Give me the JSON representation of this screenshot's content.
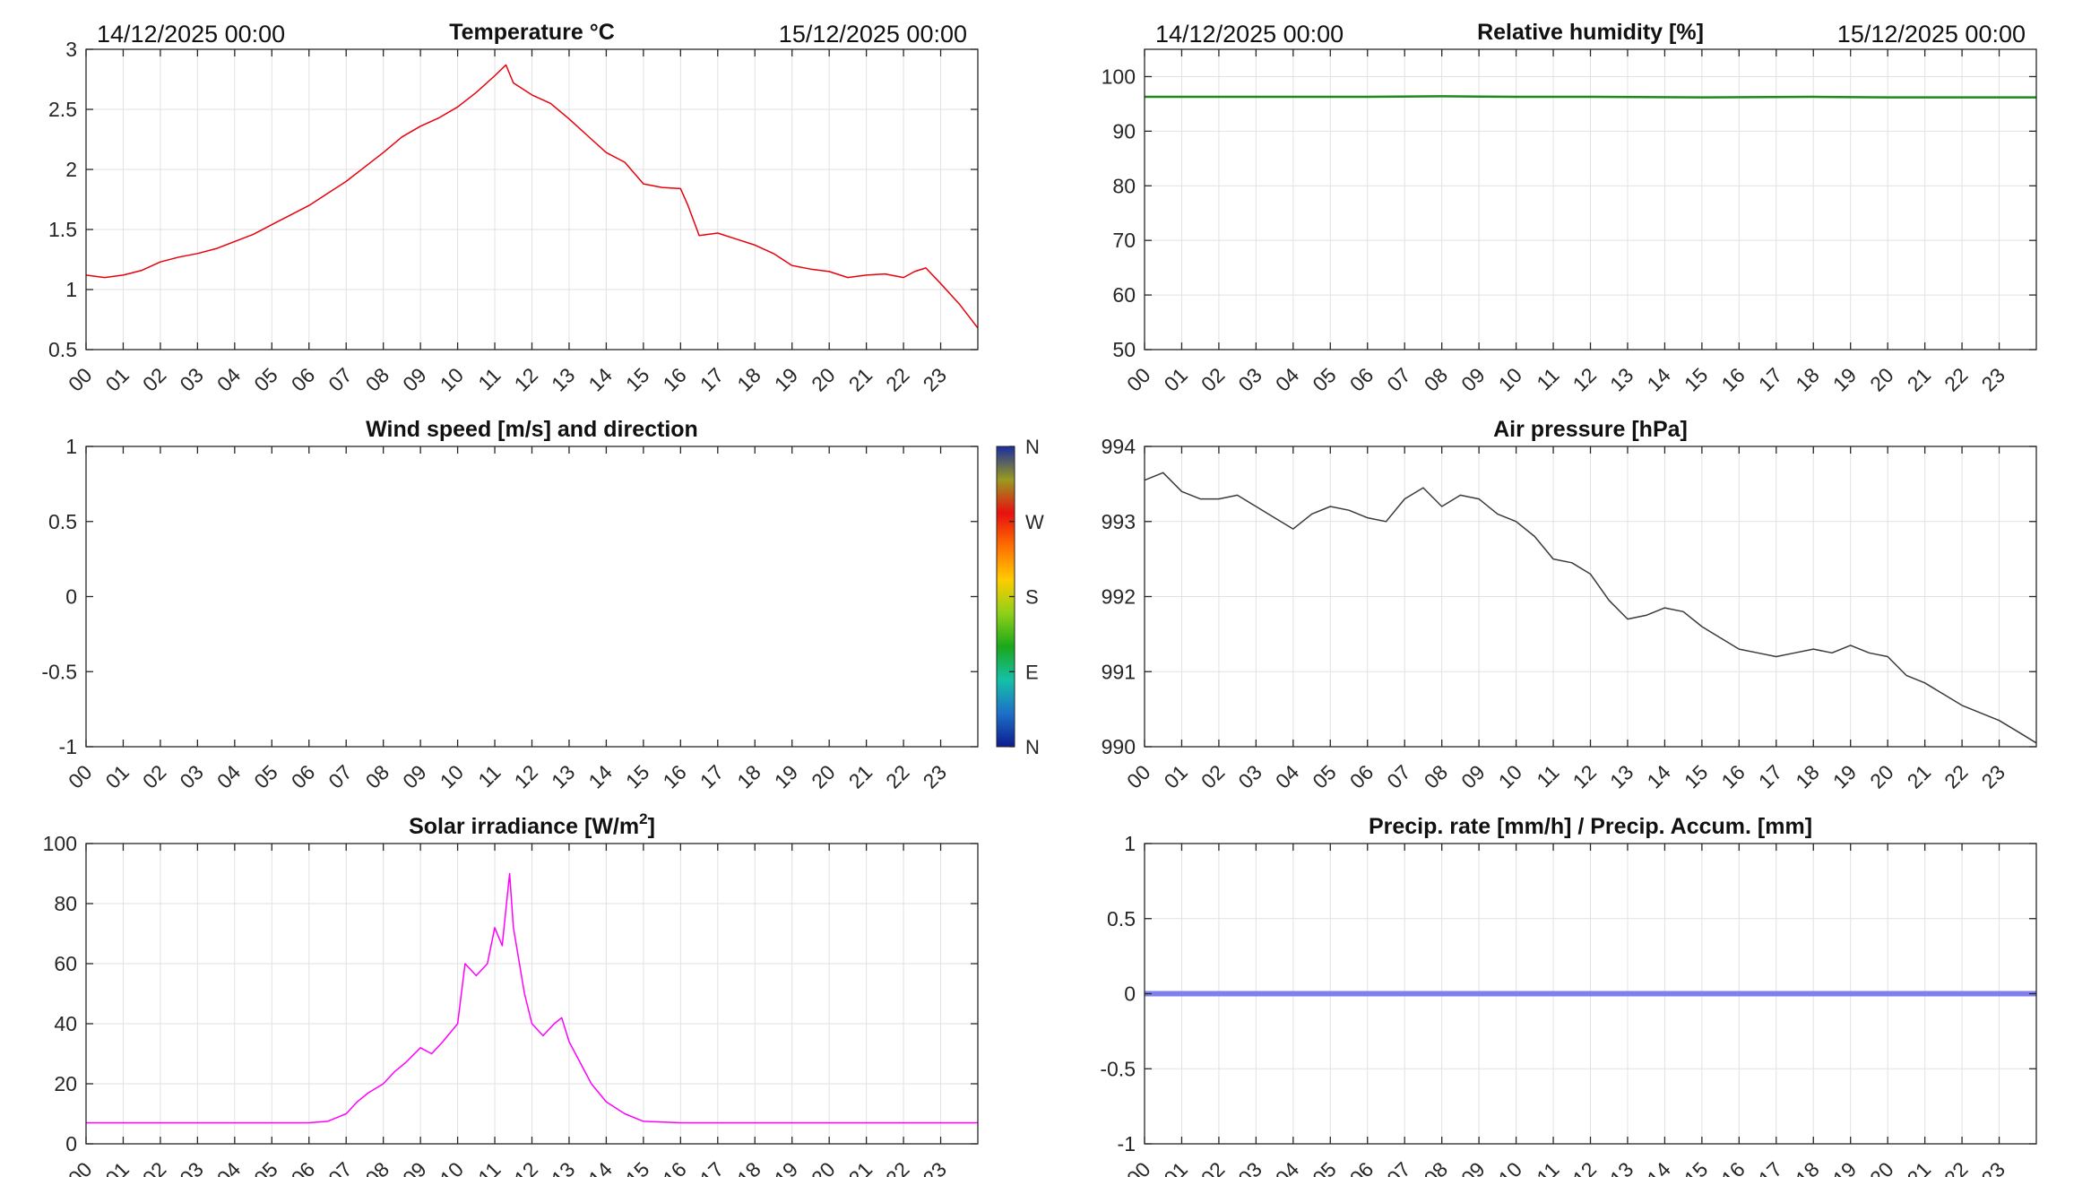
{
  "chart_data": [
    {
      "id": "temperature",
      "type": "line",
      "title": "Temperature °C",
      "date_start": "14/12/2025 00:00",
      "date_end": "15/12/2025 00:00",
      "x_ticks": [
        "00",
        "01",
        "02",
        "03",
        "04",
        "05",
        "06",
        "07",
        "08",
        "09",
        "10",
        "11",
        "12",
        "13",
        "14",
        "15",
        "16",
        "17",
        "18",
        "19",
        "20",
        "21",
        "22",
        "23"
      ],
      "xlim": [
        0,
        24
      ],
      "ylim": [
        0.5,
        3
      ],
      "y_ticks": [
        0.5,
        1,
        1.5,
        2,
        2.5,
        3
      ],
      "y_tick_labels": [
        "0.5",
        "1",
        "1.5",
        "2",
        "2.5",
        "3"
      ],
      "line_color": "#e8000b",
      "grid": true,
      "series": [
        {
          "x": [
            0,
            0.5,
            1,
            1.5,
            2,
            2.5,
            3,
            3.5,
            4,
            4.5,
            5,
            5.5,
            6,
            6.5,
            7,
            7.5,
            8,
            8.5,
            9,
            9.5,
            10,
            10.5,
            11,
            11.3,
            11.5,
            12,
            12.5,
            13,
            13.5,
            14,
            14.5,
            15,
            15.5,
            16,
            16.2,
            16.5,
            17,
            17.5,
            18,
            18.5,
            19,
            19.5,
            20,
            20.5,
            21,
            21.5,
            22,
            22.3,
            22.6,
            23,
            23.5,
            24
          ],
          "y": [
            1.12,
            1.1,
            1.12,
            1.16,
            1.23,
            1.27,
            1.3,
            1.34,
            1.4,
            1.46,
            1.54,
            1.62,
            1.7,
            1.8,
            1.9,
            2.02,
            2.14,
            2.27,
            2.36,
            2.43,
            2.52,
            2.64,
            2.78,
            2.87,
            2.72,
            2.62,
            2.55,
            2.42,
            2.28,
            2.14,
            2.06,
            1.88,
            1.85,
            1.84,
            1.7,
            1.45,
            1.47,
            1.42,
            1.37,
            1.3,
            1.2,
            1.17,
            1.15,
            1.1,
            1.12,
            1.13,
            1.1,
            1.15,
            1.18,
            1.05,
            0.88,
            0.68
          ]
        }
      ]
    },
    {
      "id": "humidity",
      "type": "line",
      "title": "Relative humidity [%]",
      "date_start": "14/12/2025 00:00",
      "date_end": "15/12/2025 00:00",
      "x_ticks": [
        "00",
        "01",
        "02",
        "03",
        "04",
        "05",
        "06",
        "07",
        "08",
        "09",
        "10",
        "11",
        "12",
        "13",
        "14",
        "15",
        "16",
        "17",
        "18",
        "19",
        "20",
        "21",
        "22",
        "23"
      ],
      "xlim": [
        0,
        24
      ],
      "ylim": [
        50,
        105
      ],
      "y_ticks": [
        50,
        60,
        70,
        80,
        90,
        100
      ],
      "y_tick_labels": [
        "50",
        "60",
        "70",
        "80",
        "90",
        "100"
      ],
      "line_color": "#1a8a1a",
      "grid": true,
      "series": [
        {
          "x": [
            0,
            6,
            8,
            10,
            12,
            15,
            18,
            20,
            24
          ],
          "y": [
            96.3,
            96.3,
            96.4,
            96.3,
            96.3,
            96.2,
            96.3,
            96.2,
            96.2
          ]
        }
      ]
    },
    {
      "id": "wind",
      "type": "scatter",
      "title": "Wind speed [m/s] and direction",
      "x_ticks": [
        "00",
        "01",
        "02",
        "03",
        "04",
        "05",
        "06",
        "07",
        "08",
        "09",
        "10",
        "11",
        "12",
        "13",
        "14",
        "15",
        "16",
        "17",
        "18",
        "19",
        "20",
        "21",
        "22",
        "23"
      ],
      "xlim": [
        0,
        24
      ],
      "ylim": [
        -1,
        1
      ],
      "y_ticks": [
        -1,
        -0.5,
        0,
        0.5,
        1
      ],
      "y_tick_labels": [
        "-1",
        "-0.5",
        "0",
        "0.5",
        "1"
      ],
      "grid": false,
      "series": [],
      "colorbar": {
        "labels": [
          "N",
          "W",
          "S",
          "E",
          "N"
        ],
        "colors": [
          "#0d1c8f",
          "#1c70c8",
          "#15c0a8",
          "#1aa81a",
          "#8fd018",
          "#ffcc00",
          "#ff7000",
          "#e81010",
          "#9a9a20",
          "#1a2da0"
        ]
      }
    },
    {
      "id": "pressure",
      "type": "line",
      "title": "Air pressure [hPa]",
      "x_ticks": [
        "00",
        "01",
        "02",
        "03",
        "04",
        "05",
        "06",
        "07",
        "08",
        "09",
        "10",
        "11",
        "12",
        "13",
        "14",
        "15",
        "16",
        "17",
        "18",
        "19",
        "20",
        "21",
        "22",
        "23"
      ],
      "xlim": [
        0,
        24
      ],
      "ylim": [
        990,
        994
      ],
      "y_ticks": [
        990,
        991,
        992,
        993,
        994
      ],
      "y_tick_labels": [
        "990",
        "991",
        "992",
        "993",
        "994"
      ],
      "line_color": "#3a3a3a",
      "grid": true,
      "series": [
        {
          "x": [
            0,
            0.5,
            1,
            1.5,
            2,
            2.5,
            3,
            3.5,
            4,
            4.5,
            5,
            5.5,
            6,
            6.5,
            7,
            7.5,
            8,
            8.5,
            9,
            9.5,
            10,
            10.5,
            11,
            11.5,
            12,
            12.5,
            13,
            13.5,
            14,
            14.5,
            15,
            15.5,
            16,
            16.5,
            17,
            17.5,
            18,
            18.5,
            19,
            19.5,
            20,
            20.5,
            21,
            21.5,
            22,
            22.5,
            23,
            23.5,
            24
          ],
          "y": [
            993.55,
            993.65,
            993.4,
            993.3,
            993.3,
            993.35,
            993.2,
            993.05,
            992.9,
            993.1,
            993.2,
            993.15,
            993.05,
            993.0,
            993.3,
            993.45,
            993.2,
            993.35,
            993.3,
            993.1,
            993.0,
            992.8,
            992.5,
            992.45,
            992.3,
            991.95,
            991.7,
            991.75,
            991.85,
            991.8,
            991.6,
            991.45,
            991.3,
            991.25,
            991.2,
            991.25,
            991.3,
            991.25,
            991.35,
            991.25,
            991.2,
            990.95,
            990.85,
            990.7,
            990.55,
            990.45,
            990.35,
            990.2,
            990.05
          ]
        }
      ]
    },
    {
      "id": "solar",
      "type": "line",
      "title": "Solar irradiance [W/m",
      "title_superscript": "2",
      "title_suffix": "]",
      "x_ticks": [
        "00",
        "01",
        "02",
        "03",
        "04",
        "05",
        "06",
        "07",
        "08",
        "09",
        "10",
        "11",
        "12",
        "13",
        "14",
        "15",
        "16",
        "17",
        "18",
        "19",
        "20",
        "21",
        "22",
        "23"
      ],
      "xlim": [
        0,
        24
      ],
      "ylim": [
        0,
        100
      ],
      "y_ticks": [
        0,
        20,
        40,
        60,
        80,
        100
      ],
      "y_tick_labels": [
        "0",
        "20",
        "40",
        "60",
        "80",
        "100"
      ],
      "line_color": "#ff00ff",
      "grid": true,
      "series": [
        {
          "x": [
            0,
            1,
            2,
            3,
            4,
            5,
            6,
            6.5,
            7,
            7.3,
            7.6,
            8,
            8.3,
            8.6,
            9,
            9.3,
            9.6,
            10,
            10.2,
            10.5,
            10.8,
            11,
            11.2,
            11.4,
            11.5,
            11.8,
            12,
            12.3,
            12.6,
            12.8,
            13,
            13.3,
            13.6,
            14,
            14.5,
            15,
            16,
            17,
            18,
            19,
            20,
            21,
            22,
            23,
            24
          ],
          "y": [
            7,
            7,
            7,
            7,
            7,
            7,
            7,
            7.5,
            10,
            14,
            17,
            20,
            24,
            27,
            32,
            30,
            34,
            40,
            60,
            56,
            60,
            72,
            66,
            90,
            72,
            50,
            40,
            36,
            40,
            42,
            34,
            27,
            20,
            14,
            10,
            7.5,
            7,
            7,
            7,
            7,
            7,
            7,
            7,
            7,
            7
          ]
        }
      ]
    },
    {
      "id": "precip",
      "type": "line",
      "title": "Precip. rate [mm/h] / Precip. Accum. [mm]",
      "x_ticks": [
        "00",
        "01",
        "02",
        "03",
        "04",
        "05",
        "06",
        "07",
        "08",
        "09",
        "10",
        "11",
        "12",
        "13",
        "14",
        "15",
        "16",
        "17",
        "18",
        "19",
        "20",
        "21",
        "22",
        "23"
      ],
      "xlim": [
        0,
        24
      ],
      "ylim": [
        -1,
        1
      ],
      "y_ticks": [
        -1,
        -0.5,
        0,
        0.5,
        1
      ],
      "y_tick_labels": [
        "-1",
        "-0.5",
        "0",
        "0.5",
        "1"
      ],
      "line_color": "#7f7fee",
      "grid": true,
      "series": [
        {
          "x": [
            0,
            24
          ],
          "y": [
            0,
            0
          ]
        }
      ]
    }
  ]
}
